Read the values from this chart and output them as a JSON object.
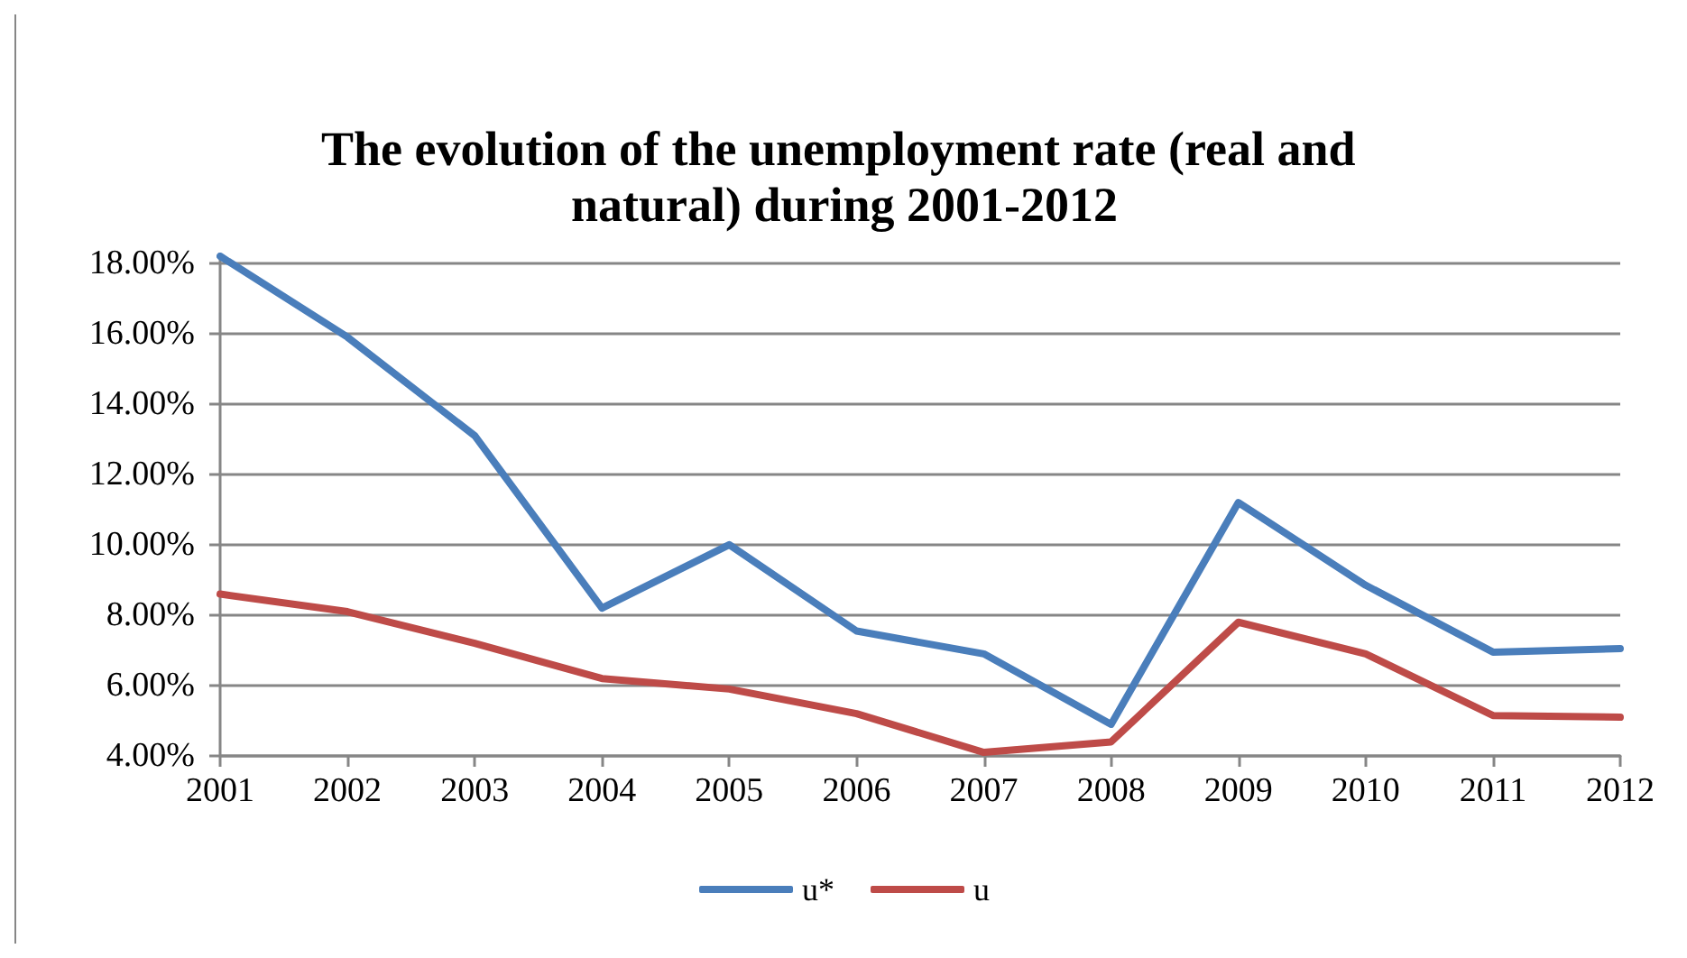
{
  "chart_data": {
    "type": "line",
    "title": "The evolution of the unemployment rate (real and natural) during 2001-2012",
    "categories": [
      "2001",
      "2002",
      "2003",
      "2004",
      "2005",
      "2006",
      "2007",
      "2008",
      "2009",
      "2010",
      "2011",
      "2012"
    ],
    "series": [
      {
        "name": "u*",
        "color": "#4a7ebb",
        "values": [
          18.2,
          15.9,
          13.1,
          8.2,
          10.0,
          7.55,
          6.9,
          4.9,
          11.2,
          8.85,
          6.95,
          7.05
        ]
      },
      {
        "name": "u",
        "color": "#be4b48",
        "values": [
          8.6,
          8.1,
          7.2,
          6.2,
          5.9,
          5.2,
          4.1,
          4.4,
          7.8,
          6.9,
          5.15,
          5.1
        ]
      }
    ],
    "ylim": [
      4,
      18.2
    ],
    "yticks": [
      {
        "value": 4,
        "label": "4.00%"
      },
      {
        "value": 6,
        "label": "6.00%"
      },
      {
        "value": 8,
        "label": "8.00%"
      },
      {
        "value": 10,
        "label": "10.00%"
      },
      {
        "value": 12,
        "label": "12.00%"
      },
      {
        "value": 14,
        "label": "14.00%"
      },
      {
        "value": 16,
        "label": "16.00%"
      },
      {
        "value": 18,
        "label": "18.00%"
      }
    ],
    "grid": "y",
    "legend": "bottom",
    "marker": "none",
    "line_style": "solid"
  }
}
